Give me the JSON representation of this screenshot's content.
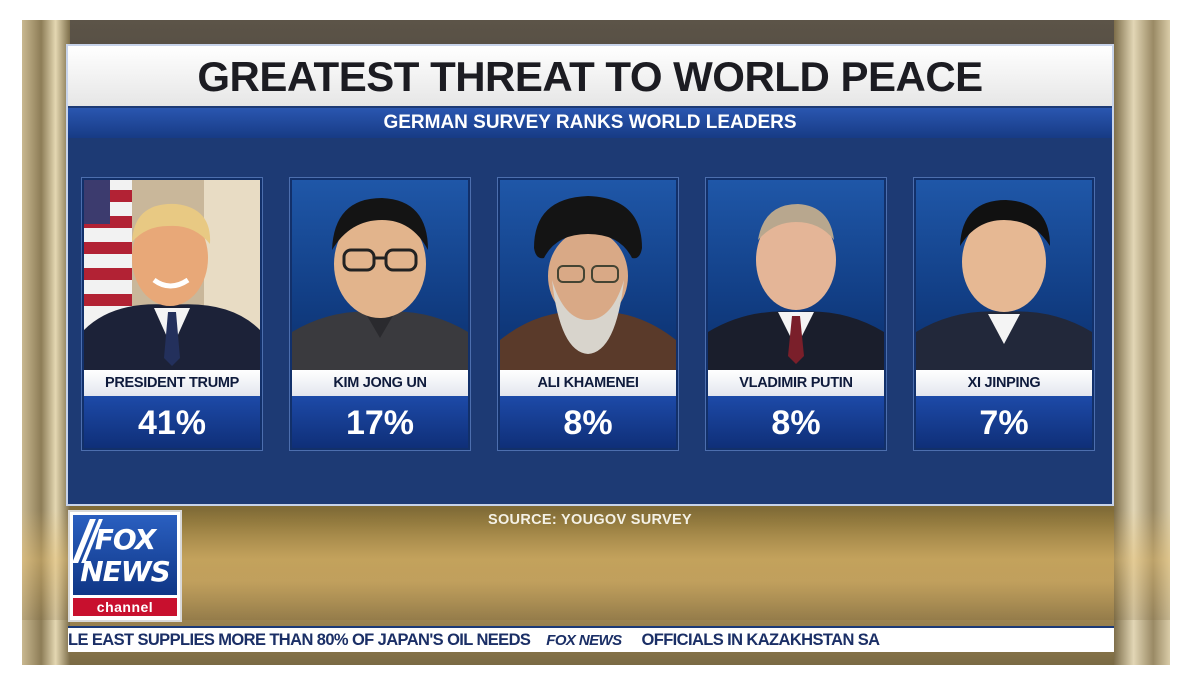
{
  "graphic": {
    "title": "GREATEST THREAT TO WORLD PEACE",
    "subtitle": "GERMAN SURVEY RANKS WORLD LEADERS",
    "source": "SOURCE: YOUGOV SURVEY",
    "leaders": [
      {
        "name": "PRESIDENT TRUMP",
        "percent": "41%"
      },
      {
        "name": "KIM JONG UN",
        "percent": "17%"
      },
      {
        "name": "ALI KHAMENEI",
        "percent": "8%"
      },
      {
        "name": "VLADIMIR PUTIN",
        "percent": "8%"
      },
      {
        "name": "XI JINPING",
        "percent": "7%"
      }
    ]
  },
  "logo": {
    "line1": "FOX",
    "line2": "NEWS",
    "line3": "channel"
  },
  "ticker": {
    "left_text": "LE EAST SUPPLIES MORE THAN 80% OF JAPAN'S OIL NEEDS",
    "brand": "FOX NEWS",
    "right_text": "OFFICIALS IN KAZAKHSTAN SA"
  },
  "colors": {
    "panel_blue": "#1d3a74",
    "bar_blue": "#1d4aa8",
    "channel_red": "#c8102e"
  }
}
